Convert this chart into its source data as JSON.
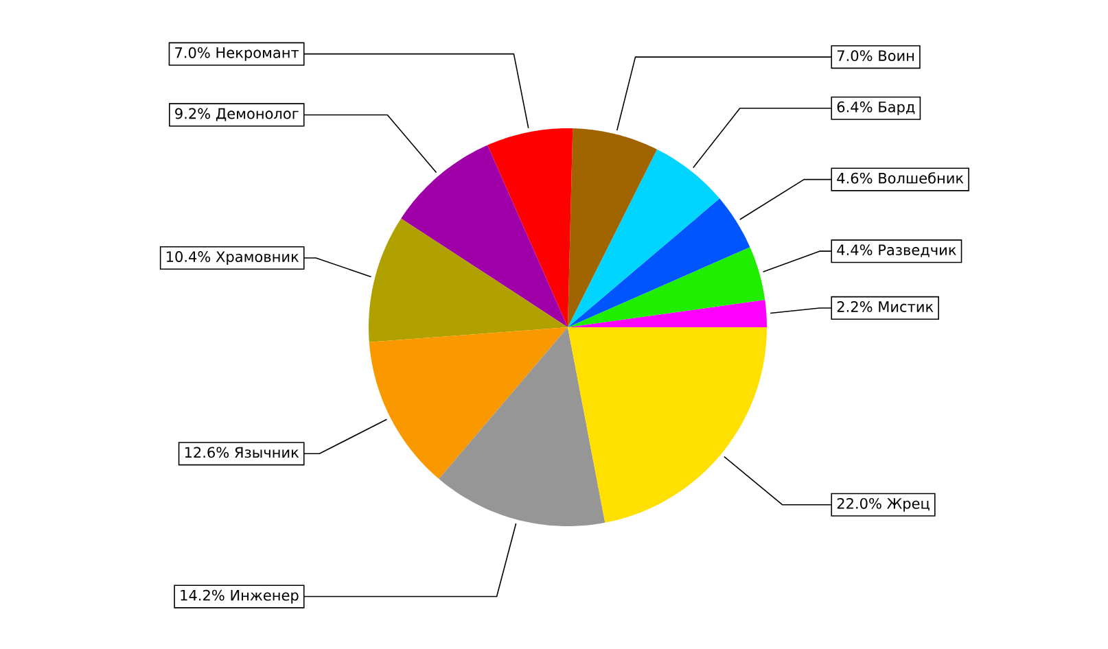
{
  "chart_data": {
    "type": "pie",
    "categories": [
      "Мистик",
      "Разведчик",
      "Волшебник",
      "Бард",
      "Воин",
      "Некромант",
      "Демонолог",
      "Храмовник",
      "Язычник",
      "Инженер",
      "Жрец"
    ],
    "values": [
      2.2,
      4.4,
      4.6,
      6.4,
      7.0,
      7.0,
      9.2,
      10.4,
      12.6,
      14.2,
      22.0
    ],
    "value_labels": [
      "2.2%",
      "4.4%",
      "4.6%",
      "6.4%",
      "7.0%",
      "7.0%",
      "9.2%",
      "10.4%",
      "12.6%",
      "14.2%",
      "22.0%"
    ],
    "colors": [
      "#ff00ff",
      "#20ee00",
      "#0055ff",
      "#00d5ff",
      "#a06400",
      "#ff0000",
      "#a000a8",
      "#b0a000",
      "#fa9800",
      "#969696",
      "#ffe000"
    ]
  }
}
